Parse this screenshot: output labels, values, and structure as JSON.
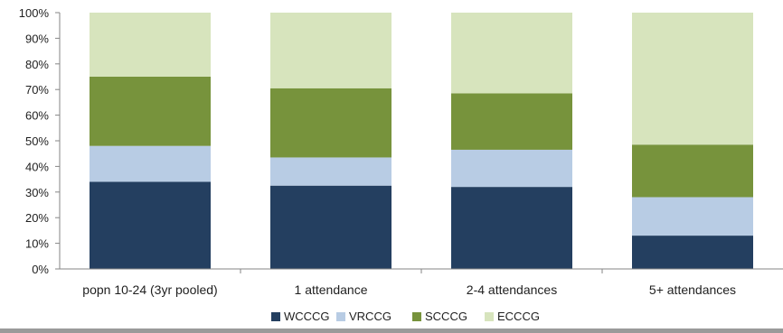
{
  "chart_data": {
    "type": "bar",
    "stacked": true,
    "percent_stacked": true,
    "categories": [
      "popn 10-24 (3yr pooled)",
      "1 attendance",
      "2-4 attendances",
      "5+ attendances"
    ],
    "series": [
      {
        "name": "WCCCG",
        "color": "#243F60",
        "values": [
          34,
          32.5,
          32,
          13
        ]
      },
      {
        "name": "VRCCG",
        "color": "#B8CCE4",
        "values": [
          14,
          11,
          14.5,
          15
        ]
      },
      {
        "name": "SCCCG",
        "color": "#77933C",
        "values": [
          27,
          27,
          22,
          20.5
        ]
      },
      {
        "name": "ECCCG",
        "color": "#D7E4BD",
        "values": [
          25,
          29.5,
          31.5,
          51.5
        ]
      }
    ],
    "y_ticks": [
      "0%",
      "10%",
      "20%",
      "30%",
      "40%",
      "50%",
      "60%",
      "70%",
      "80%",
      "90%",
      "100%"
    ],
    "ylim": [
      0,
      100
    ],
    "grid": false,
    "legend_position": "bottom",
    "title": "",
    "xlabel": "",
    "ylabel": ""
  }
}
